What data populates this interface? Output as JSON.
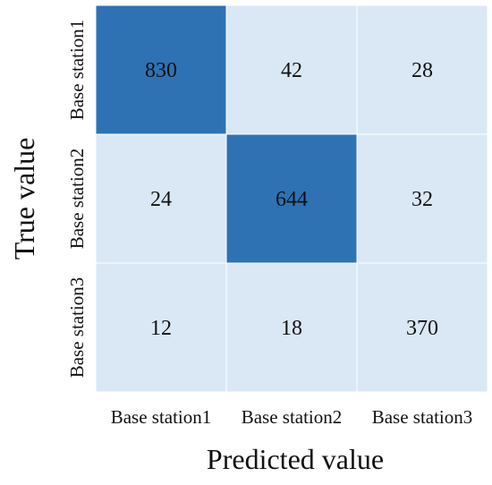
{
  "chart_data": {
    "type": "heatmap",
    "title": "",
    "xlabel": "Predicted value",
    "ylabel": "True value",
    "x_categories": [
      "Base station1",
      "Base station2",
      "Base station3"
    ],
    "y_categories": [
      "Base station1",
      "Base station2",
      "Base station3"
    ],
    "values": [
      [
        830,
        42,
        28
      ],
      [
        24,
        644,
        32
      ],
      [
        12,
        18,
        370
      ]
    ],
    "colors": {
      "low": "#dae8f6",
      "high": "#2e72b4",
      "cell_border": "#ffffff"
    },
    "grid": false,
    "legend": "none"
  }
}
